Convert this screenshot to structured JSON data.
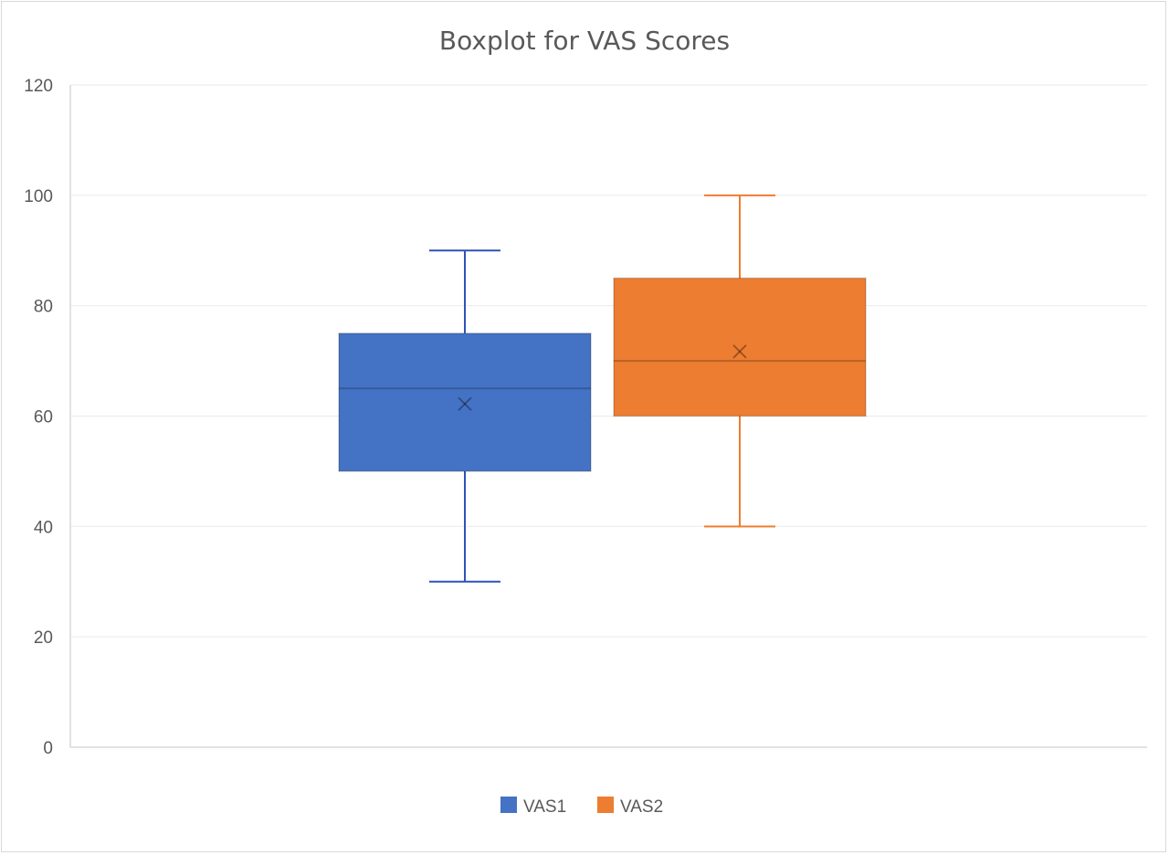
{
  "chart_data": {
    "type": "boxplot",
    "title": "Boxplot for VAS Scores",
    "xlabel": "",
    "ylabel": "",
    "ylim": [
      0,
      120
    ],
    "yticks": [
      0,
      20,
      40,
      60,
      80,
      100,
      120
    ],
    "grid": true,
    "legend_position": "bottom",
    "series": [
      {
        "name": "VAS1",
        "color": "#4472c4",
        "whisker_color": "#2f52b8",
        "min": 30,
        "q1": 50,
        "median": 65,
        "q3": 75,
        "max": 90,
        "mean": 62.2
      },
      {
        "name": "VAS2",
        "color": "#ed7d31",
        "whisker_color": "#ed7d31",
        "min": 40,
        "q1": 60,
        "median": 70,
        "q3": 85,
        "max": 100,
        "mean": 71.7
      }
    ]
  }
}
